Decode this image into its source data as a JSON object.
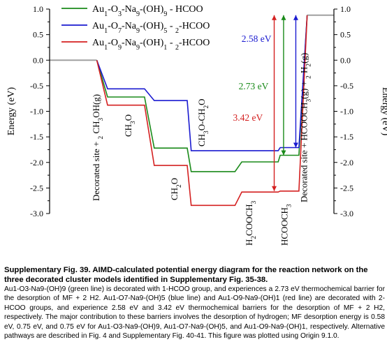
{
  "chart_data": {
    "type": "line",
    "subtype": "energy-level-diagram",
    "ylabel_left": "Energy (eV)",
    "ylabel_right": "Energy (eV)",
    "ylim": [
      -3.0,
      1.0
    ],
    "yticks": [
      "1.0",
      "0.5",
      "0.0",
      "-0.5",
      "-1.0",
      "-1.5",
      "-2.0",
      "-2.5",
      "-3.0"
    ],
    "ytick_values": [
      1.0,
      0.5,
      0.0,
      -0.5,
      -1.0,
      -1.5,
      -2.0,
      -2.5,
      -3.0
    ],
    "start_label": "Decorated site + 2 CH3OH(g)",
    "end_label": "Decorated site + HCOOCH3(g) + 2 H2(g)",
    "start_energy": 0.0,
    "end_energy": 0.88,
    "states": [
      "CH3O",
      "CH3O-CH2O",
      "CH2O",
      "H2COOCH3",
      "HCOOCH3"
    ],
    "series": [
      {
        "name": "Au1-O3-Na9-(OH)9 - HCOO",
        "color": "#1a8a1a",
        "values": [
          -0.72,
          -1.72,
          -2.18,
          -1.99,
          -1.86
        ]
      },
      {
        "name": "Au1-O7-Na9-(OH)5 - 2-HCOO",
        "color": "#1a1ad0",
        "values": [
          -0.56,
          -0.79,
          -1.77,
          -1.77,
          -1.71
        ]
      },
      {
        "name": "Au1-O9-Na9-(OH)1 - 2-HCOO",
        "color": "#d42020",
        "values": [
          -0.88,
          -2.06,
          -2.84,
          -2.58,
          -2.56
        ]
      }
    ],
    "barrier_labels": [
      "2.58 eV",
      "2.73 eV",
      "3.42 eV"
    ],
    "barrier_values": [
      2.58,
      2.73,
      3.42
    ],
    "barrier_colors": [
      "#1a1ad0",
      "#1a8a1a",
      "#d42020"
    ]
  },
  "caption": {
    "title": "Supplementary Fig. 39. AIMD-calculated potential energy diagram for the reaction network on the three decorated cluster models identified in Supplementary Fig. 35-38.",
    "body": "Au1-O3-Na9-(OH)9 (green line) is decorated with 1-HCOO group, and experiences a 2.73 eV thermochemical barrier for the desorption of MF + 2 H2. Au1-O7-Na9-(OH)5 (blue line) and Au1-O9-Na9-(OH)1 (red line) are decorated with 2-HCOO groups, and experience 2.58 eV and 3.42 eV thermochemical barriers for the desorption of MF + 2 H2, respectively. The major contribution to these barriers involves the desorption of hydrogen; MF desorption energy is 0.58 eV, 0.75 eV, and 0.75 eV for Au1-O3-Na9-(OH)9, Au1-O7-Na9-(OH)5, and Au1-O9-Na9-(OH)1, respectively. Alternative pathways are described in Fig. 4 and Supplementary Fig. 40-41. This figure was plotted using Origin 9.1.0."
  }
}
